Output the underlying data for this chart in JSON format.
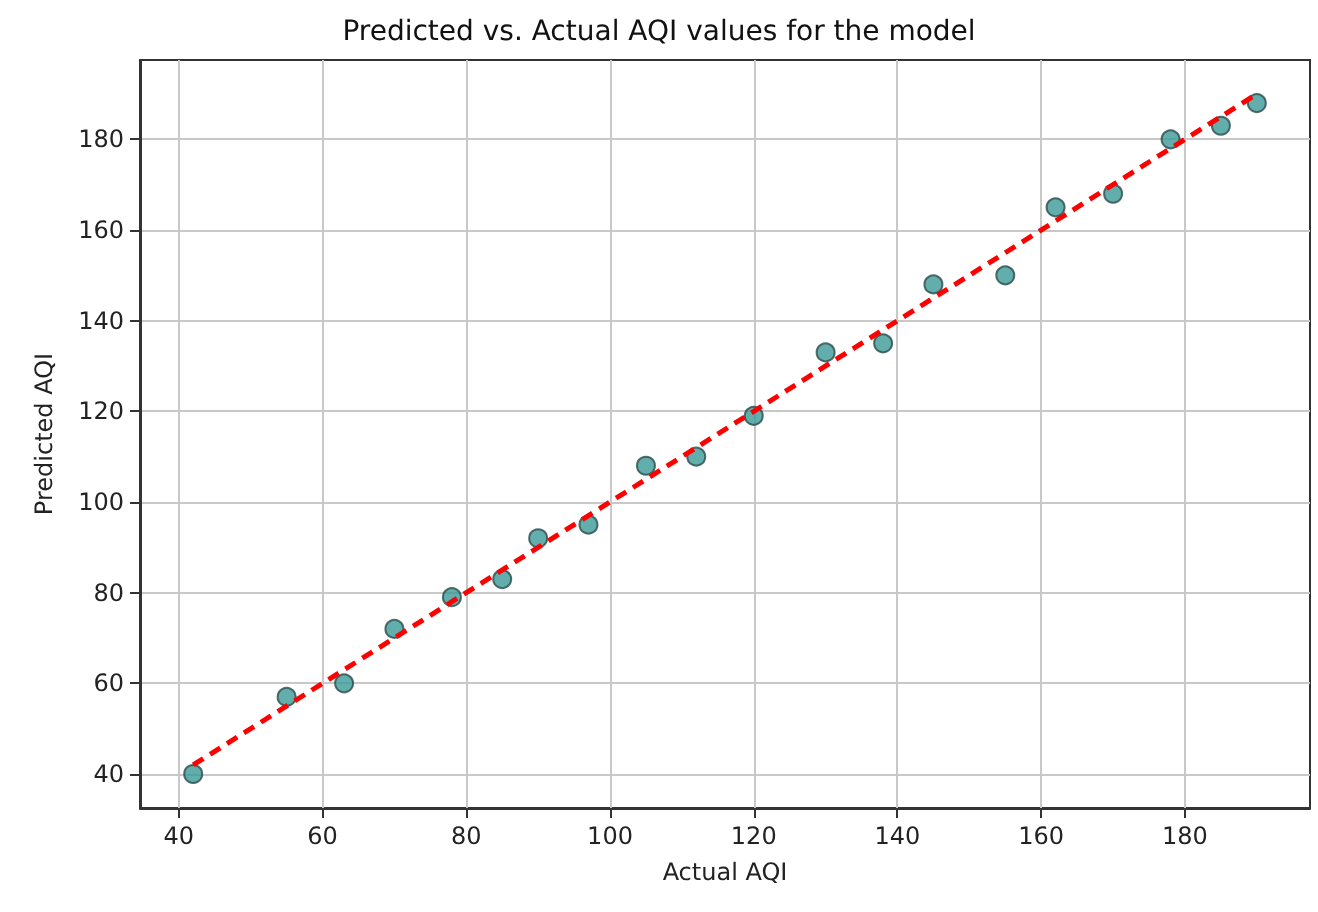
{
  "chart_data": {
    "type": "scatter",
    "title": "Predicted vs. Actual AQI values for the model",
    "xlabel": "Actual AQI",
    "ylabel": "Predicted AQI",
    "series": [
      {
        "color": "#3a9a98",
        "marker": "circle",
        "x": [
          42,
          55,
          63,
          70,
          78,
          85,
          90,
          97,
          105,
          112,
          120,
          130,
          138,
          145,
          155,
          162,
          170,
          178,
          185,
          190
        ],
        "values": [
          40,
          57,
          60,
          72,
          79,
          83,
          92,
          95,
          108,
          110,
          119,
          133,
          135,
          148,
          150,
          165,
          168,
          180,
          183,
          188
        ]
      },
      {
        "type": "line",
        "color": "#ff0000",
        "line_style": "dashed",
        "marker": "none",
        "x": [
          42,
          190
        ],
        "values": [
          42,
          190
        ]
      }
    ],
    "xlim": [
      34.6,
      197.4
    ],
    "xticks": [
      40,
      60,
      80,
      100,
      120,
      140,
      160,
      180
    ],
    "ylim": [
      32.5,
      197.5
    ],
    "yticks": [
      40,
      60,
      80,
      100,
      120,
      140,
      160,
      180
    ],
    "grid": true
  }
}
